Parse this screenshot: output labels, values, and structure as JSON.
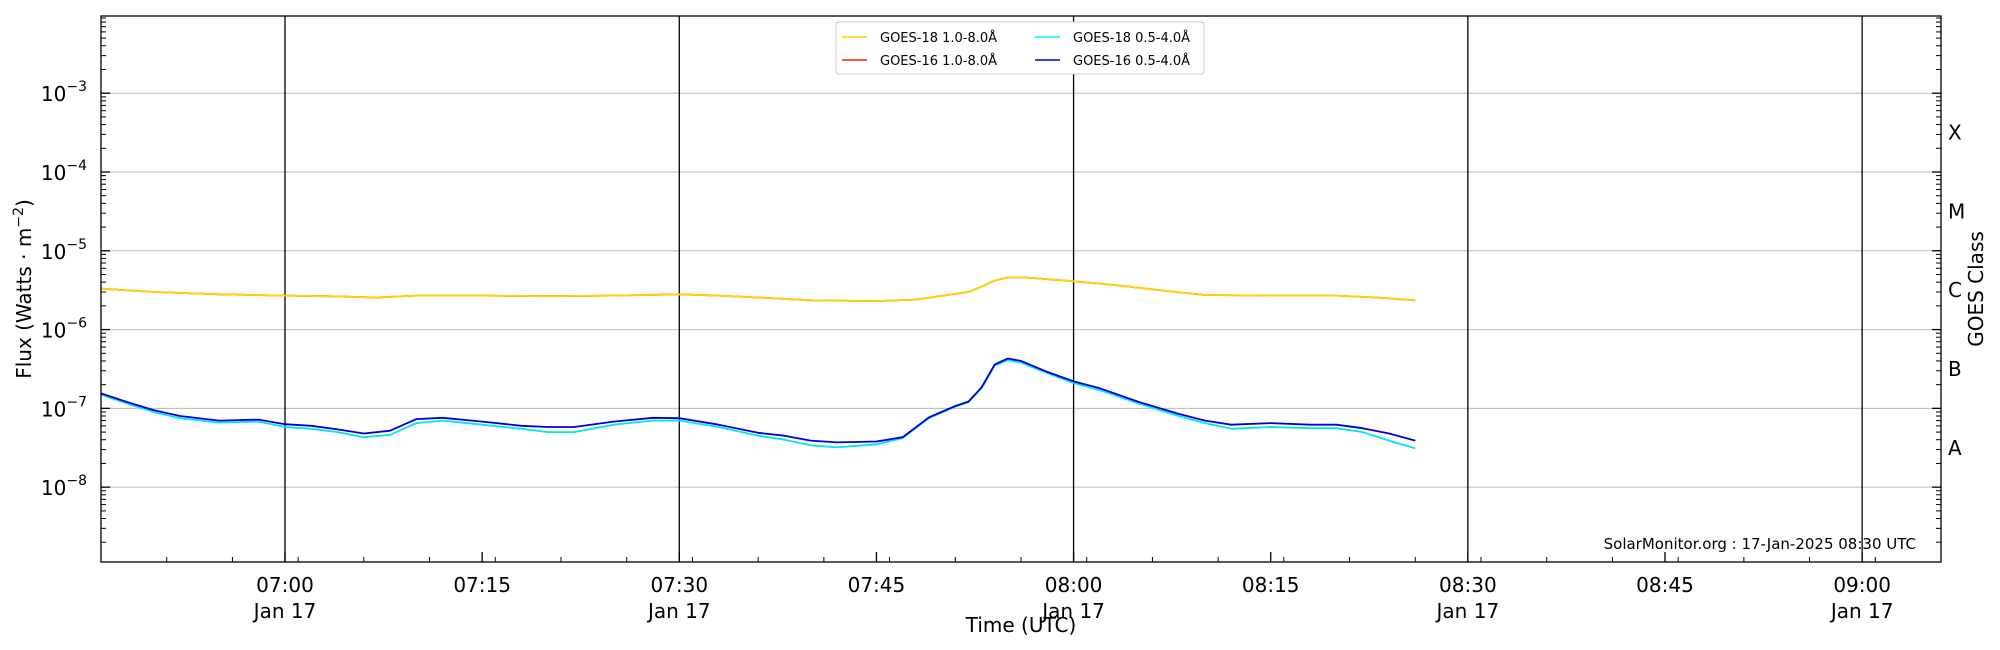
{
  "chart_data": {
    "type": "line",
    "xlabel": "Time (UTC)",
    "ylabel": "Flux (Watts · m",
    "ylabel_sup": "−2",
    "ylabel_close": ")",
    "right_label": "GOES Class",
    "y_scale": "log",
    "xlim": [
      "06:46",
      "09:06"
    ],
    "ylim_log10": [
      -8.95,
      -2.02
    ],
    "x_ticks": [
      {
        "t": "07:00",
        "label": "07:00",
        "sub": "Jan 17",
        "major": true
      },
      {
        "t": "07:15",
        "label": "07:15",
        "sub": "",
        "major": false
      },
      {
        "t": "07:30",
        "label": "07:30",
        "sub": "Jan 17",
        "major": true
      },
      {
        "t": "07:45",
        "label": "07:45",
        "sub": "",
        "major": false
      },
      {
        "t": "08:00",
        "label": "08:00",
        "sub": "Jan 17",
        "major": true
      },
      {
        "t": "08:15",
        "label": "08:15",
        "sub": "",
        "major": false
      },
      {
        "t": "08:30",
        "label": "08:30",
        "sub": "Jan 17",
        "major": true
      },
      {
        "t": "08:45",
        "label": "08:45",
        "sub": "",
        "major": false
      },
      {
        "t": "09:00",
        "label": "09:00",
        "sub": "Jan 17",
        "major": true
      }
    ],
    "y_ticks": [
      {
        "exp": -8,
        "base": "10",
        "sup": "−8"
      },
      {
        "exp": -7,
        "base": "10",
        "sup": "−7"
      },
      {
        "exp": -6,
        "base": "10",
        "sup": "−6"
      },
      {
        "exp": -5,
        "base": "10",
        "sup": "−5"
      },
      {
        "exp": -4,
        "base": "10",
        "sup": "−4"
      },
      {
        "exp": -3,
        "base": "10",
        "sup": "−3"
      }
    ],
    "goes_classes": [
      {
        "label": "A",
        "exp": -7.5
      },
      {
        "label": "B",
        "exp": -6.5
      },
      {
        "label": "C",
        "exp": -5.5
      },
      {
        "label": "M",
        "exp": -4.5
      },
      {
        "label": "X",
        "exp": -3.5
      }
    ],
    "grid": "horizontal at decades, vertical at day-labelled ticks",
    "legend": {
      "placement": "upper-center",
      "entries": [
        {
          "name": "GOES-18 1.0-8.0Å",
          "color": "#ffd700"
        },
        {
          "name": "GOES-18 0.5-4.0Å",
          "color": "#00eeee"
        },
        {
          "name": "GOES-16 1.0-8.0Å",
          "color": "#ff2200"
        },
        {
          "name": "GOES-16 0.5-4.0Å",
          "color": "#0000dd"
        }
      ]
    },
    "series": [
      {
        "name": "GOES-16 1.0-8.0Å",
        "color": "#ee2200",
        "x": [
          "06:46",
          "06:50",
          "06:55",
          "07:00",
          "07:03",
          "07:07",
          "07:10",
          "07:15",
          "07:20",
          "07:25",
          "07:30",
          "07:33",
          "07:37",
          "07:40",
          "07:45",
          "07:48",
          "07:52",
          "07:53",
          "07:54",
          "07:55",
          "07:56",
          "07:57",
          "08:00",
          "08:03",
          "08:07",
          "08:10",
          "08:15",
          "08:20",
          "08:23",
          "08:26"
        ],
        "y": [
          3.3e-06,
          3e-06,
          2.8e-06,
          2.7e-06,
          2.65e-06,
          2.55e-06,
          2.7e-06,
          2.7e-06,
          2.65e-06,
          2.7e-06,
          2.8e-06,
          2.7e-06,
          2.5e-06,
          2.35e-06,
          2.3e-06,
          2.4e-06,
          3e-06,
          3.5e-06,
          4.2e-06,
          4.6e-06,
          4.6e-06,
          4.5e-06,
          4.1e-06,
          3.7e-06,
          3.1e-06,
          2.75e-06,
          2.7e-06,
          2.7e-06,
          2.55e-06,
          2.35e-06
        ]
      },
      {
        "name": "GOES-18 1.0-8.0Å",
        "color": "#ffd700",
        "x": [
          "06:46",
          "06:50",
          "06:55",
          "07:00",
          "07:03",
          "07:07",
          "07:10",
          "07:15",
          "07:20",
          "07:25",
          "07:30",
          "07:33",
          "07:37",
          "07:40",
          "07:45",
          "07:48",
          "07:52",
          "07:53",
          "07:54",
          "07:55",
          "07:56",
          "07:57",
          "08:00",
          "08:03",
          "08:07",
          "08:10",
          "08:15",
          "08:20",
          "08:23",
          "08:26"
        ],
        "y": [
          3.3e-06,
          3e-06,
          2.8e-06,
          2.7e-06,
          2.65e-06,
          2.55e-06,
          2.7e-06,
          2.7e-06,
          2.65e-06,
          2.7e-06,
          2.8e-06,
          2.7e-06,
          2.5e-06,
          2.35e-06,
          2.3e-06,
          2.4e-06,
          3e-06,
          3.5e-06,
          4.2e-06,
          4.6e-06,
          4.6e-06,
          4.5e-06,
          4.1e-06,
          3.7e-06,
          3.1e-06,
          2.75e-06,
          2.7e-06,
          2.7e-06,
          2.55e-06,
          2.35e-06
        ]
      },
      {
        "name": "GOES-18 0.5-4.0Å",
        "color": "#00e5ee",
        "x": [
          "06:46",
          "06:48",
          "06:50",
          "06:52",
          "06:55",
          "06:58",
          "07:00",
          "07:02",
          "07:04",
          "07:06",
          "07:08",
          "07:10",
          "07:12",
          "07:15",
          "07:18",
          "07:20",
          "07:22",
          "07:25",
          "07:28",
          "07:30",
          "07:33",
          "07:36",
          "07:38",
          "07:40",
          "07:42",
          "07:45",
          "07:47",
          "07:49",
          "07:51",
          "07:52",
          "07:53",
          "07:54",
          "07:55",
          "07:56",
          "07:58",
          "08:00",
          "08:02",
          "08:05",
          "08:08",
          "08:10",
          "08:12",
          "08:15",
          "08:18",
          "08:20",
          "08:22",
          "08:24",
          "08:26"
        ],
        "y": [
          1.5e-07,
          1.15e-07,
          9e-08,
          7.5e-08,
          6.6e-08,
          6.8e-08,
          5.8e-08,
          5.5e-08,
          5e-08,
          4.3e-08,
          4.6e-08,
          6.5e-08,
          7e-08,
          6.2e-08,
          5.5e-08,
          5e-08,
          5e-08,
          6.2e-08,
          7e-08,
          7e-08,
          5.8e-08,
          4.5e-08,
          4e-08,
          3.4e-08,
          3.2e-08,
          3.5e-08,
          4.2e-08,
          7.5e-08,
          1.05e-07,
          1.2e-07,
          1.8e-07,
          3.5e-07,
          4.1e-07,
          3.8e-07,
          2.8e-07,
          2.1e-07,
          1.7e-07,
          1.15e-07,
          8e-08,
          6.5e-08,
          5.5e-08,
          5.8e-08,
          5.6e-08,
          5.6e-08,
          5e-08,
          3.9e-08,
          3.1e-08
        ]
      },
      {
        "name": "GOES-16 0.5-4.0Å",
        "color": "#0000dd",
        "x": [
          "06:46",
          "06:48",
          "06:50",
          "06:52",
          "06:55",
          "06:58",
          "07:00",
          "07:02",
          "07:04",
          "07:06",
          "07:08",
          "07:10",
          "07:12",
          "07:15",
          "07:18",
          "07:20",
          "07:22",
          "07:25",
          "07:28",
          "07:30",
          "07:33",
          "07:36",
          "07:38",
          "07:40",
          "07:42",
          "07:45",
          "07:47",
          "07:49",
          "07:51",
          "07:52",
          "07:53",
          "07:54",
          "07:55",
          "07:56",
          "07:58",
          "08:00",
          "08:02",
          "08:05",
          "08:08",
          "08:10",
          "08:12",
          "08:15",
          "08:18",
          "08:20",
          "08:22",
          "08:24",
          "08:26"
        ],
        "y": [
          1.55e-07,
          1.2e-07,
          9.5e-08,
          8e-08,
          7e-08,
          7.2e-08,
          6.3e-08,
          6e-08,
          5.4e-08,
          4.8e-08,
          5.2e-08,
          7.3e-08,
          7.6e-08,
          6.8e-08,
          6e-08,
          5.8e-08,
          5.8e-08,
          6.8e-08,
          7.6e-08,
          7.5e-08,
          6.2e-08,
          4.9e-08,
          4.5e-08,
          3.9e-08,
          3.7e-08,
          3.8e-08,
          4.3e-08,
          7.7e-08,
          1.07e-07,
          1.22e-07,
          1.85e-07,
          3.6e-07,
          4.3e-07,
          4e-07,
          2.9e-07,
          2.2e-07,
          1.8e-07,
          1.2e-07,
          8.5e-08,
          7e-08,
          6.2e-08,
          6.5e-08,
          6.2e-08,
          6.2e-08,
          5.6e-08,
          4.8e-08,
          3.9e-08
        ]
      }
    ],
    "annotation": "SolarMonitor.org : 17-Jan-2025 08:30 UTC"
  }
}
